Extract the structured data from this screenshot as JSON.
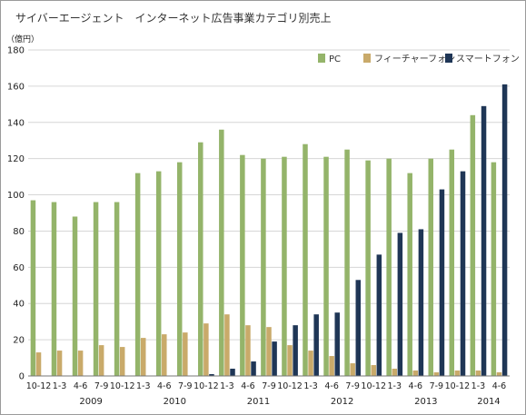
{
  "page": {
    "title": "サイバーエージェント　インターネット広告事業カテゴリ別売上"
  },
  "chart_data": {
    "type": "bar",
    "title": "サイバーエージェント　インターネット広告事業カテゴリ別売上",
    "ylabel": "（億円）",
    "xlabel": "",
    "ylim": [
      0,
      180
    ],
    "yticks": [
      0,
      20,
      40,
      60,
      80,
      100,
      120,
      140,
      160,
      180
    ],
    "grid": true,
    "legend_position": "top-right",
    "categories": [
      "10-12",
      "1-3",
      "4-6",
      "7-9",
      "10-12",
      "1-3",
      "4-6",
      "7-9",
      "10-12",
      "1-3",
      "4-6",
      "7-9",
      "10-12",
      "1-3",
      "4-6",
      "7-9",
      "10-12",
      "1-3",
      "4-6",
      "7-9",
      "10-12",
      "1-3",
      "4-6"
    ],
    "year_groups": [
      {
        "label": "2009",
        "start": 1,
        "end": 4
      },
      {
        "label": "2010",
        "start": 5,
        "end": 8
      },
      {
        "label": "2011",
        "start": 9,
        "end": 12
      },
      {
        "label": "2012",
        "start": 13,
        "end": 16
      },
      {
        "label": "2013",
        "start": 17,
        "end": 20
      },
      {
        "label": "2014",
        "start": 21,
        "end": 22
      }
    ],
    "series": [
      {
        "name": "PC",
        "color": "#94b46a",
        "values": [
          97,
          96,
          88,
          96,
          96,
          112,
          113,
          118,
          129,
          136,
          122,
          120,
          121,
          128,
          121,
          125,
          119,
          120,
          112,
          120,
          125,
          144,
          118
        ]
      },
      {
        "name": "フィーチャーフォン",
        "color": "#c9aa6a",
        "values": [
          13,
          14,
          14,
          17,
          16,
          21,
          23,
          24,
          29,
          34,
          28,
          27,
          17,
          14,
          11,
          7,
          6,
          4,
          3,
          2,
          3,
          3,
          2
        ]
      },
      {
        "name": "スマートフォン",
        "color": "#1f3656",
        "values": [
          0,
          0,
          0,
          0,
          0,
          0,
          0,
          0,
          1,
          4,
          8,
          19,
          28,
          34,
          35,
          53,
          67,
          79,
          81,
          103,
          113,
          149,
          161
        ]
      }
    ]
  }
}
